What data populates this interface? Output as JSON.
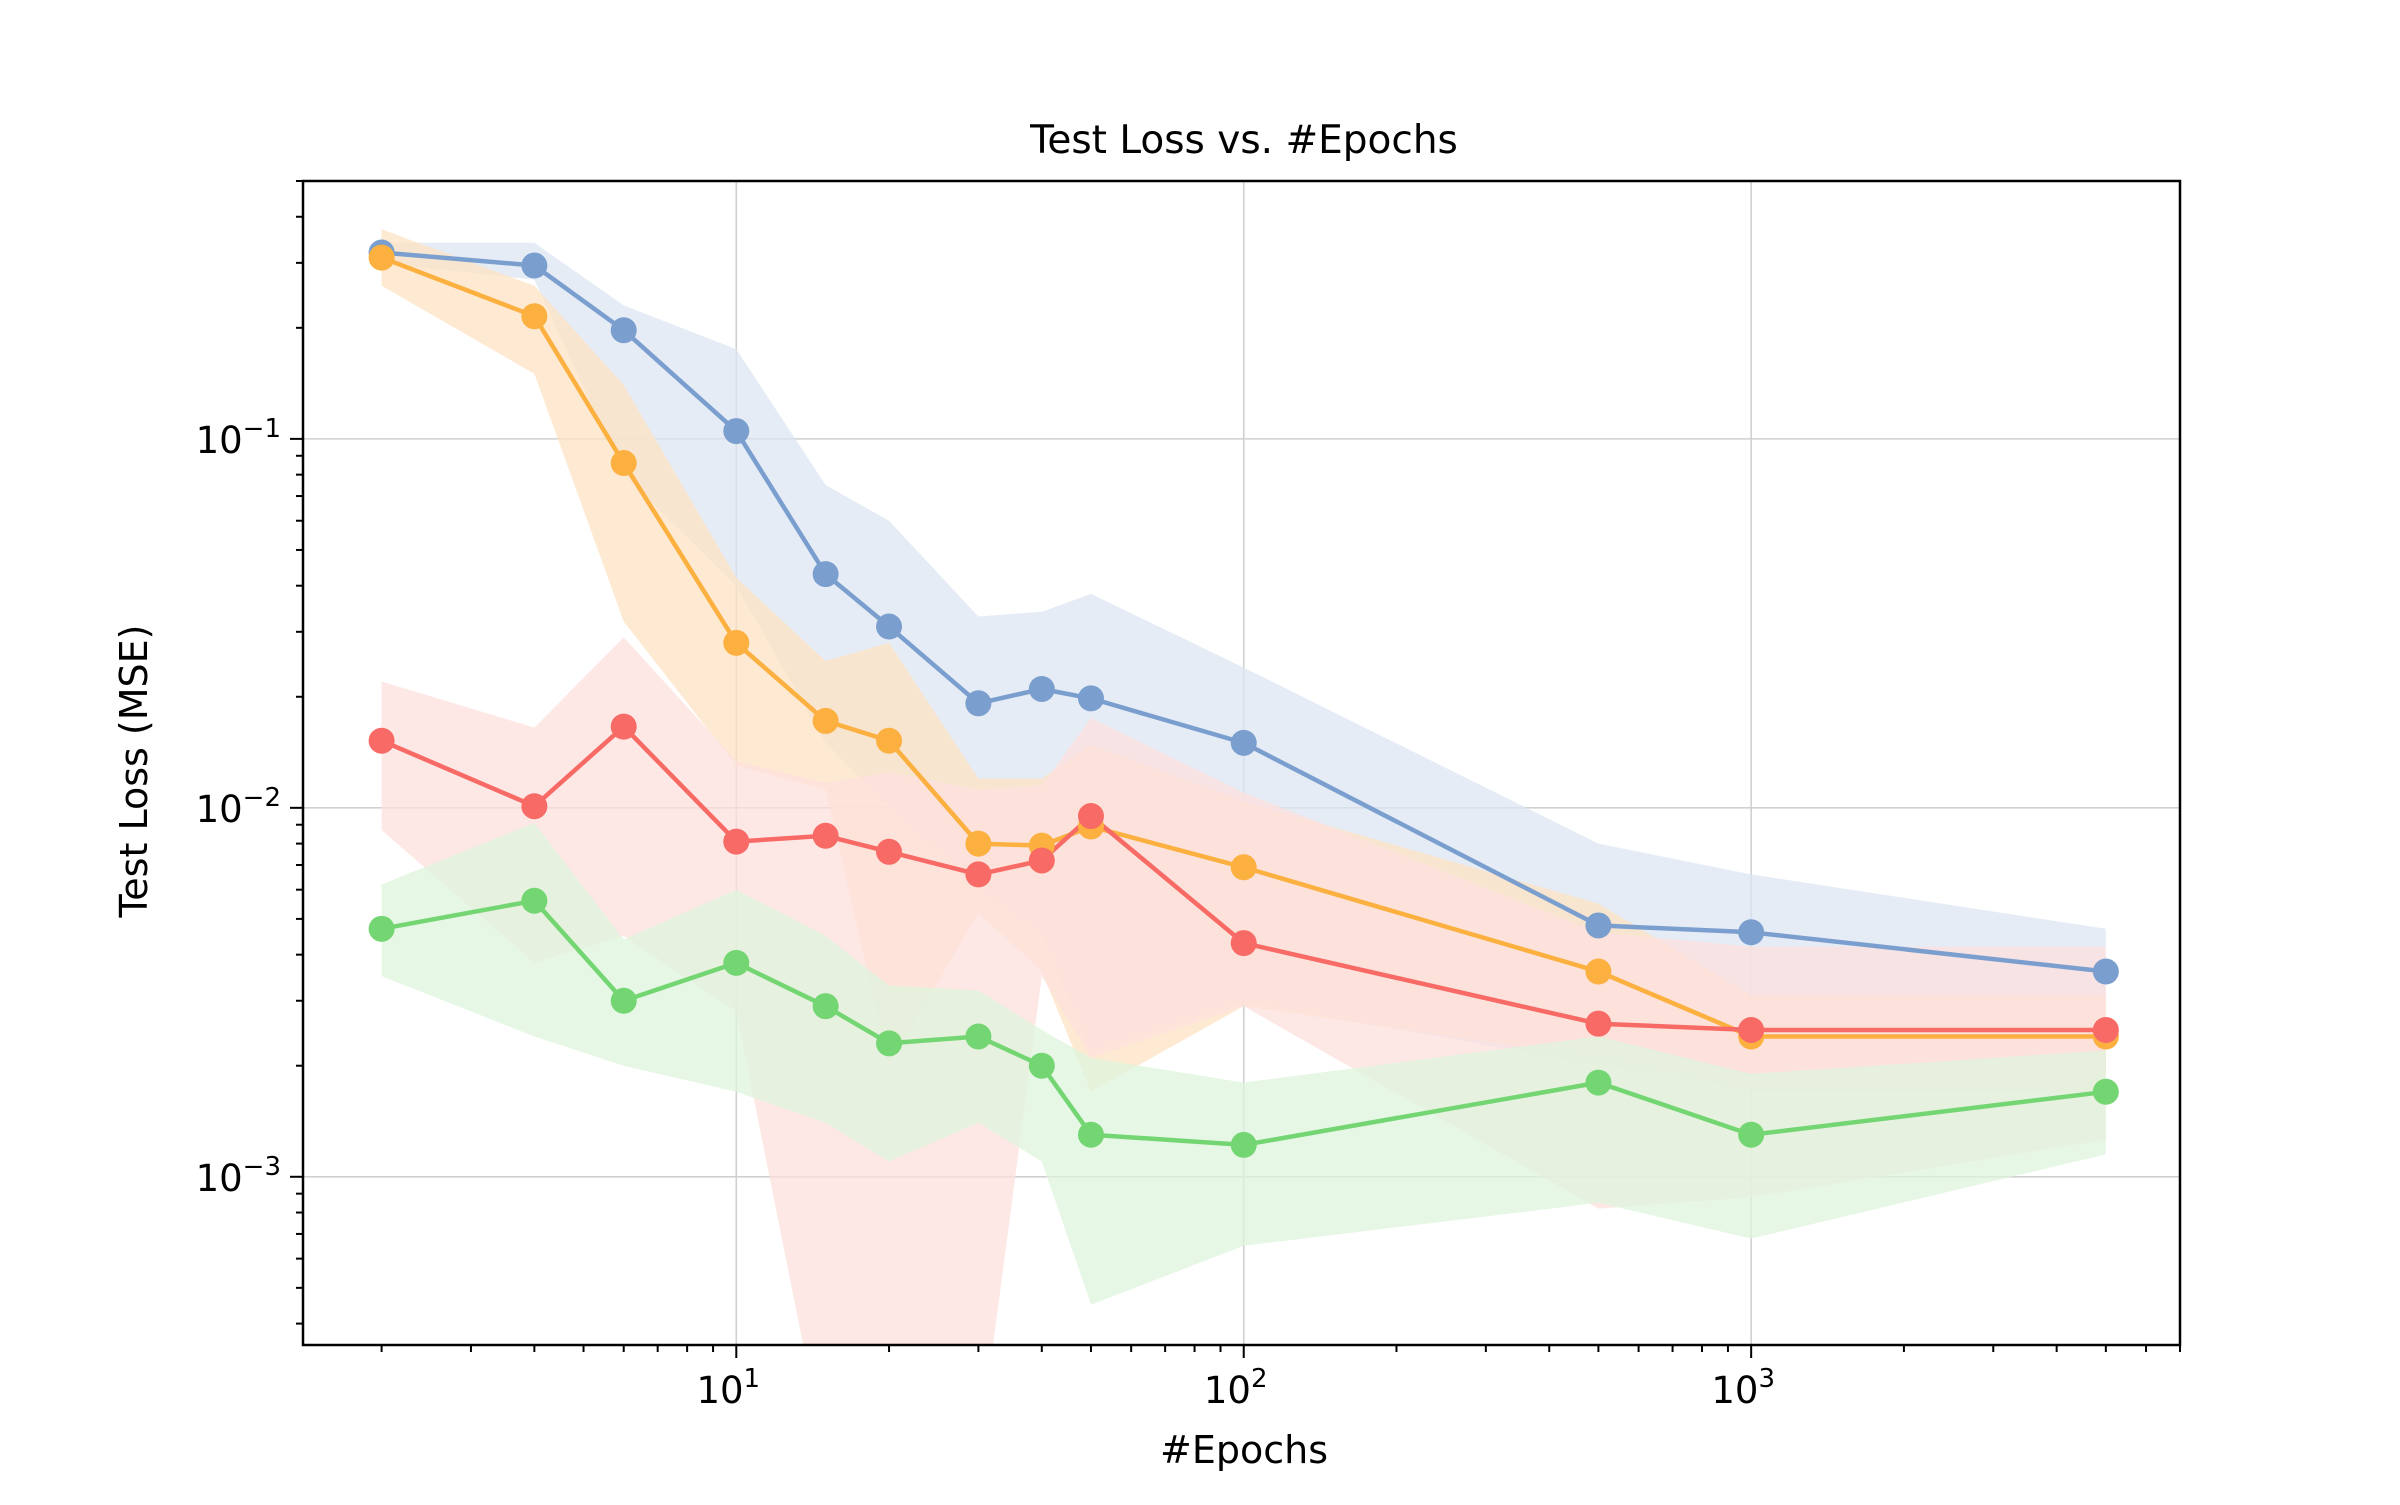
{
  "chart_data": {
    "type": "line",
    "title": "Test Loss vs. #Epochs",
    "xlabel": "#Epochs",
    "ylabel": "Test Loss (MSE)",
    "xscale": "log",
    "yscale": "log",
    "xlim": [
      1.4,
      7000
    ],
    "ylim": [
      0.00035,
      0.5
    ],
    "grid": true,
    "legend": "none",
    "x": [
      2,
      4,
      6,
      10,
      15,
      20,
      30,
      40,
      50,
      100,
      500,
      1000,
      5000
    ],
    "x_ticks": [
      {
        "value": 10,
        "base": "10",
        "exp": "1"
      },
      {
        "value": 100,
        "base": "10",
        "exp": "2"
      },
      {
        "value": 1000,
        "base": "10",
        "exp": "3"
      }
    ],
    "y_ticks": [
      {
        "value": 0.1,
        "base": "10",
        "exp": "−1"
      },
      {
        "value": 0.01,
        "base": "10",
        "exp": "−2"
      },
      {
        "value": 0.001,
        "base": "10",
        "exp": "−3"
      }
    ],
    "series": [
      {
        "color": "#7a9fcf",
        "band_color": "#dde6f1",
        "values": [
          0.32,
          0.295,
          0.197,
          0.105,
          0.043,
          0.031,
          0.0192,
          0.021,
          0.0198,
          0.015,
          0.0048,
          0.0046,
          0.0036
        ],
        "lower": [
          0.3,
          0.27,
          0.08,
          0.04,
          0.015,
          0.01,
          0.006,
          0.0045,
          0.0022,
          0.003,
          0.002,
          0.0018,
          0.0017
        ],
        "upper": [
          0.34,
          0.34,
          0.23,
          0.175,
          0.075,
          0.06,
          0.033,
          0.034,
          0.038,
          0.024,
          0.008,
          0.0066,
          0.0047
        ]
      },
      {
        "color": "#fbb040",
        "band_color": "#fde3c3",
        "values": [
          0.31,
          0.215,
          0.086,
          0.028,
          0.0172,
          0.0152,
          0.008,
          0.0079,
          0.0089,
          0.0069,
          0.0036,
          0.0024,
          0.0024
        ],
        "lower": [
          0.26,
          0.15,
          0.032,
          0.013,
          0.0112,
          0.002,
          0.0052,
          0.0036,
          0.0017,
          0.0029,
          0.0021,
          0.0017,
          0.0017
        ],
        "upper": [
          0.37,
          0.26,
          0.14,
          0.042,
          0.025,
          0.028,
          0.012,
          0.012,
          0.0148,
          0.0104,
          0.0055,
          0.0031,
          0.0031
        ]
      },
      {
        "color": "#f86a65",
        "band_color": "#fde0de",
        "values": [
          0.0152,
          0.0101,
          0.0166,
          0.0081,
          0.0084,
          0.0076,
          0.0066,
          0.0072,
          0.0095,
          0.0043,
          0.0026,
          0.0025,
          0.0025
        ],
        "lower": [
          0.0087,
          0.0038,
          0.0045,
          0.0028,
          0.0001,
          0.0001,
          0.0001,
          0.0035,
          0.0021,
          0.0029,
          0.00082,
          0.00088,
          0.00126
        ],
        "upper": [
          0.022,
          0.0165,
          0.029,
          0.0134,
          0.0117,
          0.0125,
          0.0112,
          0.0115,
          0.0175,
          0.011,
          0.0046,
          0.0042,
          0.0042
        ]
      },
      {
        "color": "#74d672",
        "band_color": "#dff4dc",
        "values": [
          0.0047,
          0.0056,
          0.003,
          0.0038,
          0.0029,
          0.0023,
          0.0024,
          0.002,
          0.0013,
          0.00122,
          0.0018,
          0.0013,
          0.0017
        ],
        "lower": [
          0.0035,
          0.0024,
          0.002,
          0.0017,
          0.0014,
          0.0011,
          0.0014,
          0.0011,
          0.00045,
          0.00065,
          0.00085,
          0.00068,
          0.00115
        ],
        "upper": [
          0.0062,
          0.0091,
          0.0044,
          0.006,
          0.0045,
          0.0033,
          0.0032,
          0.0025,
          0.0021,
          0.0018,
          0.0024,
          0.0019,
          0.0022
        ]
      }
    ]
  }
}
